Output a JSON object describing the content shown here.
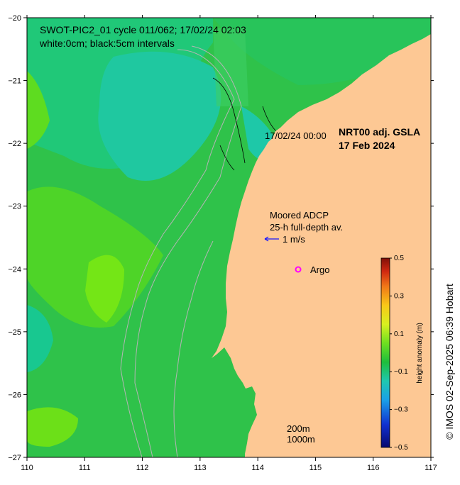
{
  "map": {
    "title_line1": "SWOT-PIC2_01 cycle 011/062; 17/02/24 02:03",
    "title_line2": "white:0cm; black:5cm intervals",
    "product_label": "NRT00 adj. GSLA",
    "product_date": "17 Feb 2024",
    "track_time_label": "17/02/24 00:00",
    "adcp_label_1": "Moored ADCP",
    "adcp_label_2": "25-h full-depth av.",
    "adcp_scale_label": "1 m/s",
    "argo_label": "Argo",
    "depth_label_1": "200m",
    "depth_label_2": "1000m",
    "credit": "© IMOS 02-Sep-2025 06:39 Hobart",
    "colors": {
      "land": "#fdc894",
      "ocean_base": "#2fc24a",
      "adcp_arrow": "#1515ff",
      "argo": "#ff00ff",
      "depth_contour": "#b4b4b4"
    }
  },
  "axes": {
    "x_ticks": [
      "110",
      "111",
      "112",
      "113",
      "114",
      "115",
      "116",
      "117"
    ],
    "y_ticks": [
      "−20",
      "−21",
      "−22",
      "−23",
      "−24",
      "−25",
      "−26",
      "−27"
    ],
    "xlim": [
      110,
      117
    ],
    "ylim": [
      -27,
      -20
    ]
  },
  "colorbar": {
    "label": "height anomaly (m)",
    "ticks": [
      "0.5",
      "0.3",
      "0.1",
      "−0.1",
      "−0.3",
      "−0.5"
    ],
    "range": [
      -0.5,
      0.5
    ]
  }
}
